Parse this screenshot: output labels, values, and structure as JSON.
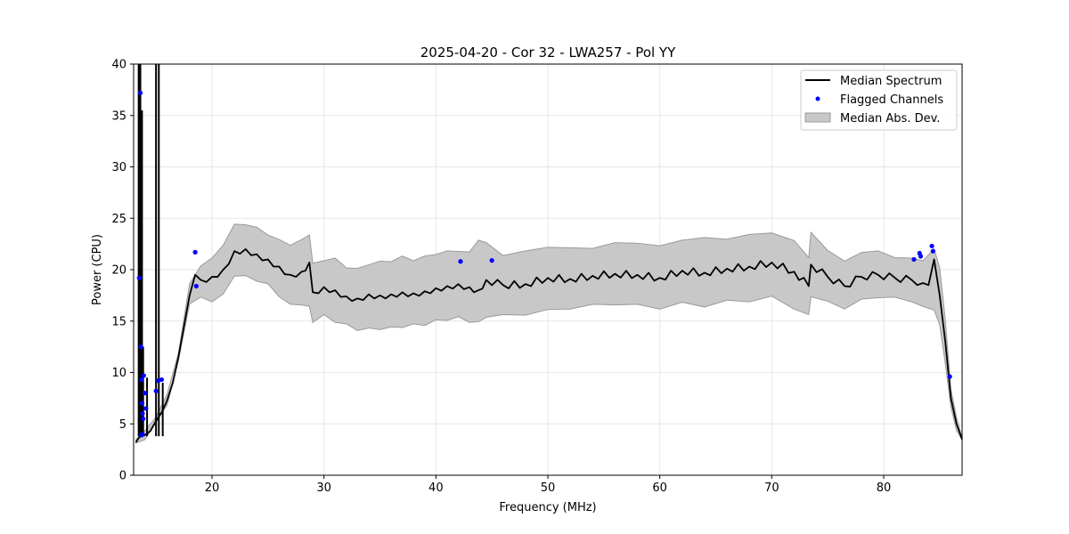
{
  "chart_data": {
    "type": "line",
    "title": "2025-04-20 - Cor 32 - LWA257 - Pol YY",
    "xlabel": "Frequency (MHz)",
    "ylabel": "Power (CPU)",
    "xlim": [
      13.0,
      87.0
    ],
    "ylim": [
      0,
      40
    ],
    "x_ticks": [
      20,
      30,
      40,
      50,
      60,
      70,
      80
    ],
    "y_ticks": [
      0,
      5,
      10,
      15,
      20,
      25,
      30,
      35,
      40
    ],
    "grid": true,
    "legend_position": "top-right",
    "legend": [
      "Median Spectrum",
      "Flagged Channels",
      "Median Abs. Dev."
    ],
    "colors": {
      "median": "#000000",
      "flagged": "#0000ff",
      "band_fill": "#c8c8c8",
      "band_edge": "#9a9a9a"
    },
    "series": [
      {
        "name": "Median Spectrum",
        "x": [
          13.2,
          13.5,
          14.0,
          14.5,
          15.0,
          15.5,
          16.0,
          16.5,
          17.0,
          17.5,
          18.0,
          18.5,
          19.0,
          20.0,
          21.0,
          22.0,
          23.0,
          24.0,
          25.0,
          26.0,
          27.0,
          28.0,
          28.7,
          29.0,
          30.0,
          31.0,
          32.0,
          33.0,
          34.0,
          35.0,
          36.0,
          37.0,
          38.0,
          39.0,
          40.0,
          41.0,
          42.0,
          43.0,
          43.8,
          44.5,
          46.0,
          48.0,
          50.0,
          52.0,
          54.0,
          56.0,
          58.0,
          60.0,
          62.0,
          64.0,
          66.0,
          68.0,
          70.0,
          72.0,
          73.3,
          73.5,
          75.0,
          76.5,
          78.0,
          79.5,
          81.0,
          82.5,
          83.5,
          84.0,
          84.5,
          85.0,
          85.5,
          86.0,
          86.5,
          87.0
        ],
        "values": [
          3.2,
          3.7,
          3.9,
          4.3,
          5.3,
          6.1,
          7.3,
          9.0,
          11.5,
          14.5,
          17.5,
          19.5,
          19.0,
          19.3,
          20.0,
          21.8,
          22.0,
          21.5,
          21.0,
          20.3,
          19.5,
          19.8,
          20.7,
          17.8,
          18.3,
          18.0,
          17.4,
          17.2,
          17.6,
          17.5,
          17.6,
          17.8,
          17.7,
          17.9,
          18.2,
          18.4,
          18.6,
          18.3,
          18.0,
          19.0,
          18.5,
          18.6,
          19.2,
          19.1,
          19.4,
          19.6,
          19.5,
          19.2,
          19.9,
          19.7,
          20.1,
          20.3,
          20.7,
          19.8,
          18.4,
          20.5,
          19.3,
          18.4,
          19.3,
          19.5,
          19.2,
          19.0,
          18.7,
          18.5,
          21.0,
          17.5,
          13.0,
          7.5,
          5.0,
          3.5
        ]
      },
      {
        "name": "Median Abs. Dev.",
        "x": [
          13.2,
          14.0,
          15.0,
          16.0,
          17.0,
          18.0,
          19.0,
          20.0,
          21.0,
          22.0,
          23.0,
          24.0,
          25.0,
          26.0,
          27.0,
          28.0,
          28.7,
          29.0,
          30.0,
          31.0,
          32.0,
          33.0,
          34.0,
          35.0,
          36.0,
          37.0,
          38.0,
          39.0,
          40.0,
          41.0,
          42.0,
          43.0,
          43.8,
          44.5,
          46.0,
          48.0,
          50.0,
          52.0,
          54.0,
          56.0,
          58.0,
          60.0,
          62.0,
          64.0,
          66.0,
          68.0,
          70.0,
          72.0,
          73.3,
          73.5,
          75.0,
          76.5,
          78.0,
          79.5,
          81.0,
          82.5,
          83.5,
          84.5,
          85.0,
          85.5,
          86.0,
          86.5,
          87.0
        ],
        "lower": [
          3.0,
          3.6,
          5.0,
          7.0,
          11.0,
          16.8,
          17.2,
          17.0,
          17.5,
          19.5,
          19.3,
          19.0,
          18.5,
          17.5,
          16.5,
          16.7,
          16.3,
          15.0,
          15.5,
          15.0,
          14.6,
          14.2,
          14.2,
          14.3,
          14.3,
          14.5,
          14.6,
          14.7,
          15.0,
          15.2,
          15.3,
          15.0,
          14.8,
          15.5,
          15.5,
          15.7,
          16.0,
          16.3,
          16.5,
          16.7,
          16.5,
          16.3,
          16.7,
          16.5,
          16.9,
          17.0,
          17.3,
          16.3,
          15.5,
          17.5,
          16.8,
          16.3,
          17.0,
          17.4,
          17.2,
          17.0,
          16.3,
          16.2,
          14.5,
          11.0,
          6.5,
          4.5,
          3.3
        ],
        "upper": [
          3.6,
          4.2,
          5.8,
          7.8,
          12.0,
          18.5,
          20.5,
          21.0,
          22.5,
          24.3,
          24.5,
          24.0,
          23.5,
          22.8,
          22.5,
          22.8,
          23.5,
          20.5,
          21.0,
          21.0,
          20.3,
          20.0,
          20.6,
          20.7,
          20.9,
          21.2,
          21.0,
          21.2,
          21.6,
          21.7,
          21.9,
          21.6,
          23.0,
          22.5,
          21.5,
          21.7,
          22.3,
          22.0,
          22.2,
          22.5,
          22.7,
          22.2,
          23.0,
          23.0,
          23.1,
          23.3,
          23.7,
          22.7,
          21.3,
          23.5,
          22.0,
          20.7,
          21.8,
          21.7,
          21.3,
          21.0,
          21.0,
          21.9,
          20.3,
          15.0,
          8.5,
          5.5,
          3.8
        ]
      },
      {
        "name": "Flagged Channels",
        "x": [
          13.5,
          13.6,
          13.65,
          13.7,
          13.75,
          13.8,
          13.85,
          13.9,
          14.0,
          14.1,
          13.7,
          13.8,
          15.0,
          15.2,
          15.5,
          18.5,
          18.6,
          42.2,
          45.0,
          82.7,
          83.2,
          83.3,
          84.3,
          84.4,
          85.9
        ],
        "values": [
          19.2,
          37.2,
          12.5,
          9.3,
          7.0,
          6.0,
          5.5,
          9.7,
          8.0,
          6.5,
          3.9,
          4.0,
          8.2,
          9.2,
          9.3,
          21.7,
          18.4,
          20.8,
          20.9,
          21.0,
          21.6,
          21.3,
          22.3,
          21.8,
          9.6
        ]
      }
    ],
    "spikes": [
      {
        "x": 13.45,
        "peak": 40
      },
      {
        "x": 13.6,
        "peak": 40
      },
      {
        "x": 13.75,
        "peak": 35.5
      },
      {
        "x": 13.85,
        "peak": 12.5
      },
      {
        "x": 15.0,
        "peak": 40
      },
      {
        "x": 15.25,
        "peak": 40
      },
      {
        "x": 14.2,
        "peak": 9.5
      },
      {
        "x": 15.6,
        "peak": 9.0
      }
    ]
  }
}
